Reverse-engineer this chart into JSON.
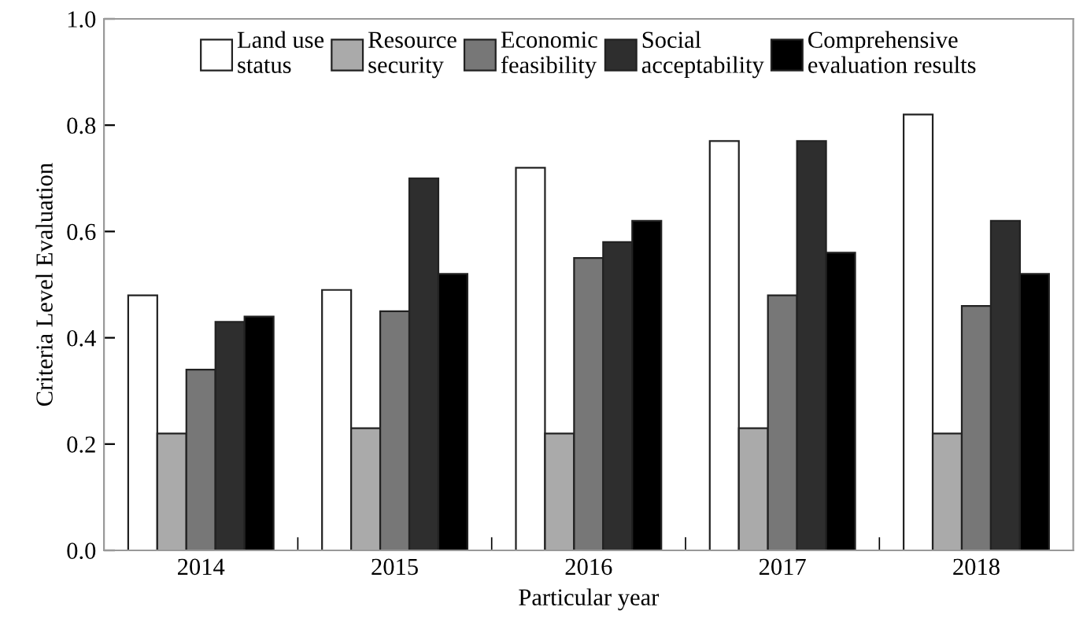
{
  "chart_data": {
    "type": "bar",
    "xlabel": "Particular year",
    "ylabel": "Criteria Level Evaluation",
    "categories": [
      "2014",
      "2015",
      "2016",
      "2017",
      "2018"
    ],
    "series": [
      {
        "name": "Land use\nstatus",
        "color": "#ffffff",
        "values": [
          0.48,
          0.49,
          0.72,
          0.77,
          0.82
        ]
      },
      {
        "name": "Resource\nsecurity",
        "color": "#aaaaaa",
        "values": [
          0.22,
          0.23,
          0.22,
          0.23,
          0.22
        ]
      },
      {
        "name": "Economic\nfeasibility",
        "color": "#777777",
        "values": [
          0.34,
          0.45,
          0.55,
          0.48,
          0.46
        ]
      },
      {
        "name": "Social\nacceptability",
        "color": "#2e2e2e",
        "values": [
          0.43,
          0.7,
          0.58,
          0.77,
          0.62
        ]
      },
      {
        "name": "Comprehensive\nevaluation results",
        "color": "#000000",
        "values": [
          0.44,
          0.52,
          0.62,
          0.56,
          0.52
        ]
      }
    ],
    "ylim": [
      0,
      1.0
    ],
    "yticks": [
      {
        "value": 0,
        "label": "0.0"
      },
      {
        "value": 0.2,
        "label": "0.2"
      },
      {
        "value": 0.4,
        "label": "0.4"
      },
      {
        "value": 0.6,
        "label": "0.6"
      },
      {
        "value": 0.8,
        "label": "0.8"
      },
      {
        "value": 1.0,
        "label": "1.0"
      }
    ],
    "grid": false,
    "legend": "top"
  }
}
